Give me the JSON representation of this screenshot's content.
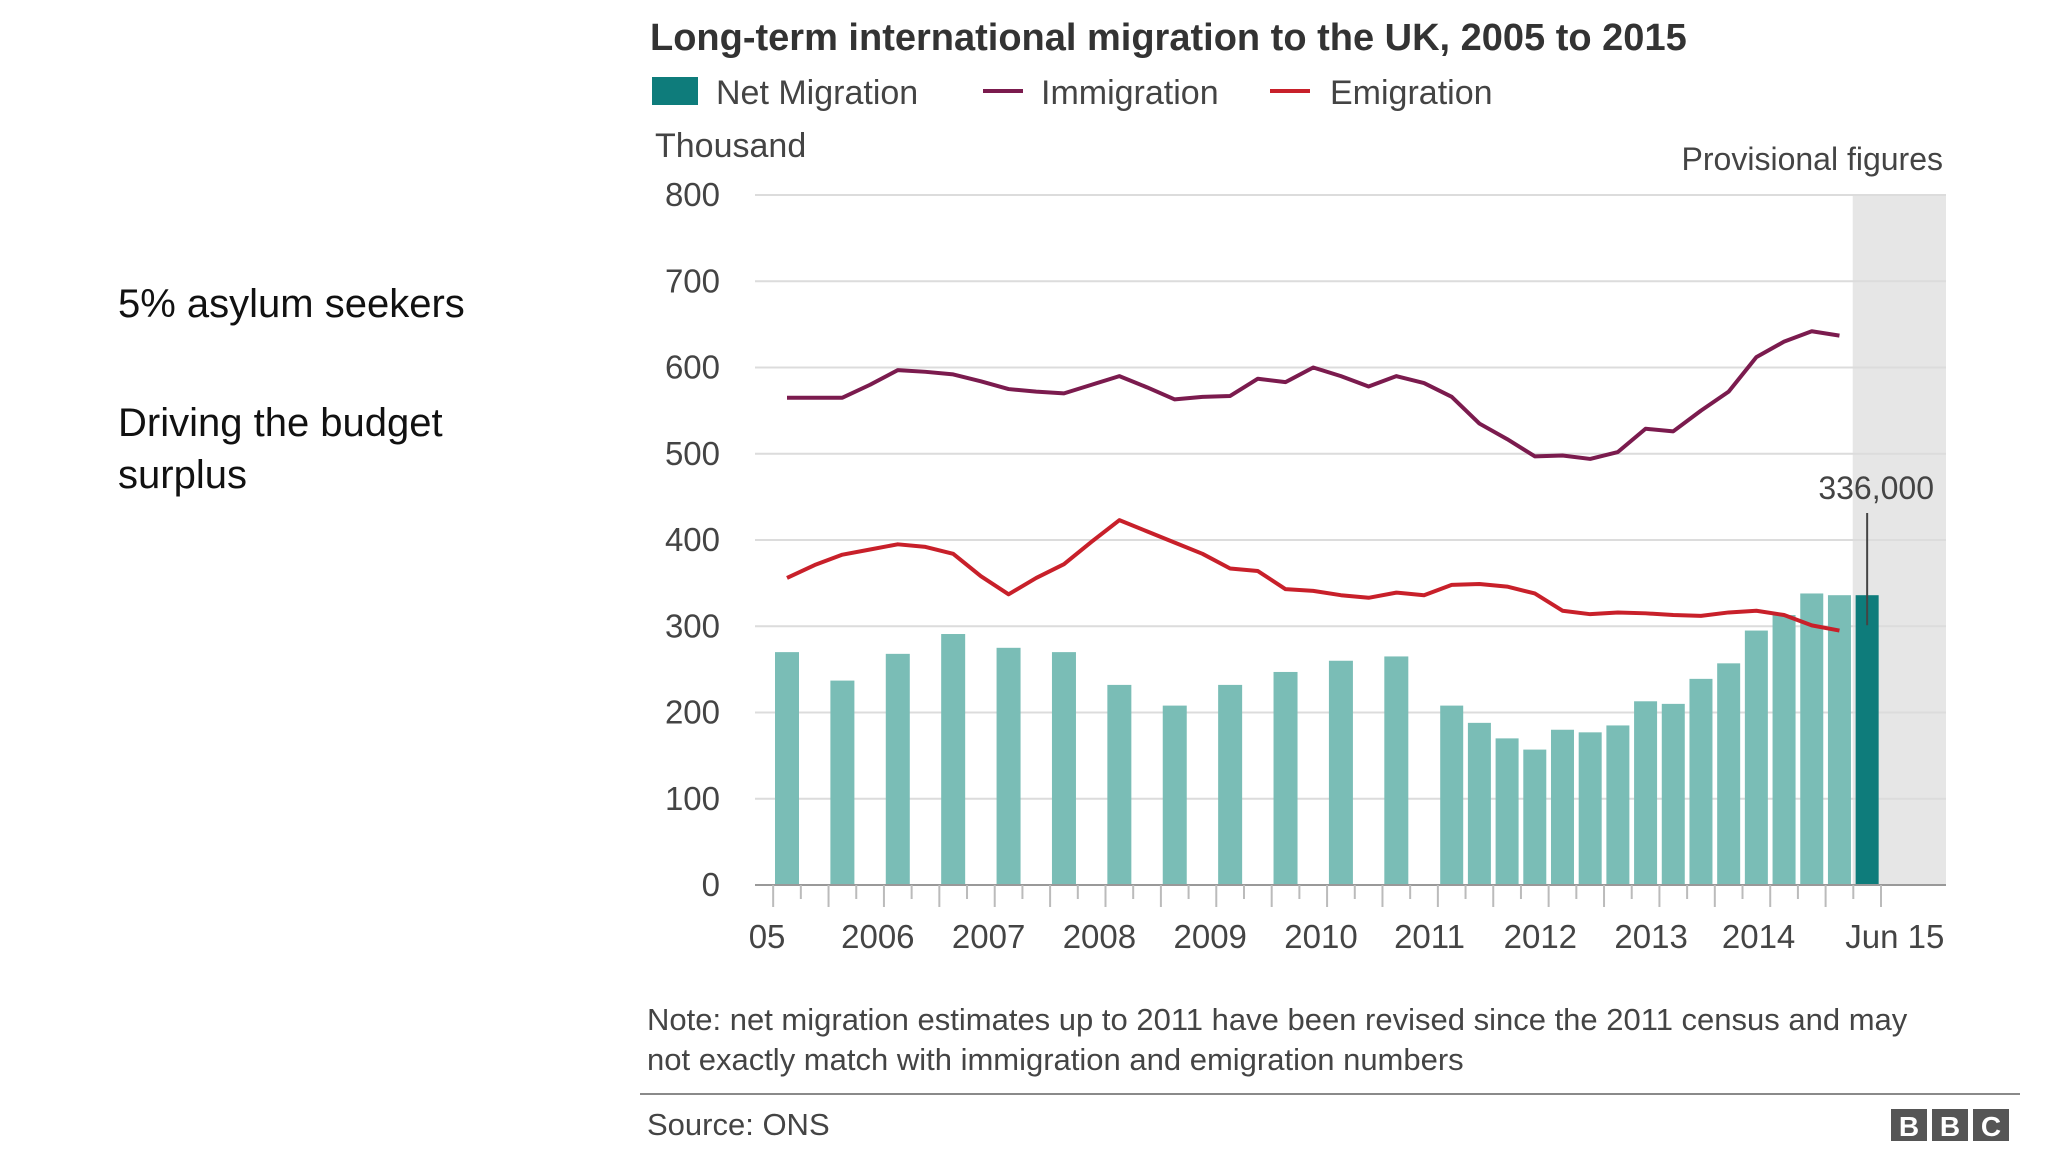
{
  "slide": {
    "bullets": [
      "5% asylum seekers",
      "Driving the budget surplus"
    ]
  },
  "chart_data": {
    "type": "bar",
    "title": "Long-term international migration to the UK, 2005 to 2015",
    "ylabel": "Thousand",
    "ylim": [
      0,
      800
    ],
    "yticks": [
      0,
      100,
      200,
      300,
      400,
      500,
      600,
      700,
      800
    ],
    "xticks": [
      "05",
      "2006",
      "2007",
      "2008",
      "2009",
      "2010",
      "2011",
      "2012",
      "2013",
      "2014",
      "Jun 15"
    ],
    "legend": [
      {
        "name": "Net Migration",
        "kind": "bar",
        "color": "#0e7c7b"
      },
      {
        "name": "Immigration",
        "kind": "line",
        "color": "#7b1b4e"
      },
      {
        "name": "Emigration",
        "kind": "line",
        "color": "#c8202a"
      }
    ],
    "legend_position": "top-left",
    "grid": true,
    "shaded_label": "Provisional figures",
    "annotation": "336,000",
    "note": [
      "Note: net migration estimates up to 2011 have been revised since the 2011 census and may",
      "not exactly match with immigration and emigration numbers"
    ],
    "source": "Source: ONS",
    "logo": "BBC",
    "net_migration": {
      "name": "Net Migration",
      "color": "#7abdb6",
      "highlight_color": "#0e7c7b",
      "x": [
        2005.0,
        2005.5,
        2006.0,
        2006.5,
        2007.0,
        2007.5,
        2008.0,
        2008.5,
        2009.0,
        2009.5,
        2010.0,
        2010.5,
        2011.0,
        2011.25,
        2011.5,
        2011.75,
        2012.0,
        2012.25,
        2012.5,
        2012.75,
        2013.0,
        2013.25,
        2013.5,
        2013.75,
        2014.0,
        2014.25,
        2014.5,
        2014.75
      ],
      "values": [
        270,
        237,
        268,
        291,
        275,
        270,
        232,
        208,
        232,
        247,
        260,
        265,
        208,
        188,
        170,
        157,
        180,
        177,
        185,
        213,
        210,
        239,
        257,
        295,
        313,
        338,
        336,
        336
      ]
    },
    "immigration": {
      "name": "Immigration",
      "color": "#7b1b4e",
      "x": [
        2005.0,
        2005.25,
        2005.5,
        2005.75,
        2006.0,
        2006.25,
        2006.5,
        2006.75,
        2007.0,
        2007.25,
        2007.5,
        2007.75,
        2008.0,
        2008.25,
        2008.5,
        2008.75,
        2009.0,
        2009.25,
        2009.5,
        2009.75,
        2010.0,
        2010.25,
        2010.5,
        2010.75,
        2011.0,
        2011.25,
        2011.5,
        2011.75,
        2012.0,
        2012.25,
        2012.5,
        2012.75,
        2013.0,
        2013.25,
        2013.5,
        2013.75,
        2014.0,
        2014.25,
        2014.5
      ],
      "values": [
        565,
        565,
        565,
        580,
        597,
        595,
        592,
        584,
        575,
        572,
        570,
        580,
        590,
        577,
        563,
        566,
        567,
        587,
        583,
        600,
        590,
        578,
        590,
        582,
        566,
        535,
        517,
        497,
        498,
        494,
        502,
        529,
        526,
        550,
        572,
        612,
        630,
        642,
        637
      ]
    },
    "emigration": {
      "name": "Emigration",
      "color": "#c8202a",
      "x": [
        2005.0,
        2005.25,
        2005.5,
        2005.75,
        2006.0,
        2006.25,
        2006.5,
        2006.75,
        2007.0,
        2007.25,
        2007.5,
        2007.75,
        2008.0,
        2008.25,
        2008.5,
        2008.75,
        2009.0,
        2009.25,
        2009.5,
        2009.75,
        2010.0,
        2010.25,
        2010.5,
        2010.75,
        2011.0,
        2011.25,
        2011.5,
        2011.75,
        2012.0,
        2012.25,
        2012.5,
        2012.75,
        2013.0,
        2013.25,
        2013.5,
        2013.75,
        2014.0,
        2014.25,
        2014.5
      ],
      "values": [
        356,
        371,
        383,
        389,
        395,
        392,
        384,
        358,
        337,
        356,
        372,
        398,
        423,
        410,
        397,
        384,
        367,
        364,
        343,
        341,
        336,
        333,
        339,
        336,
        348,
        349,
        346,
        338,
        318,
        314,
        316,
        315,
        313,
        312,
        316,
        318,
        313,
        301,
        295
      ]
    }
  }
}
